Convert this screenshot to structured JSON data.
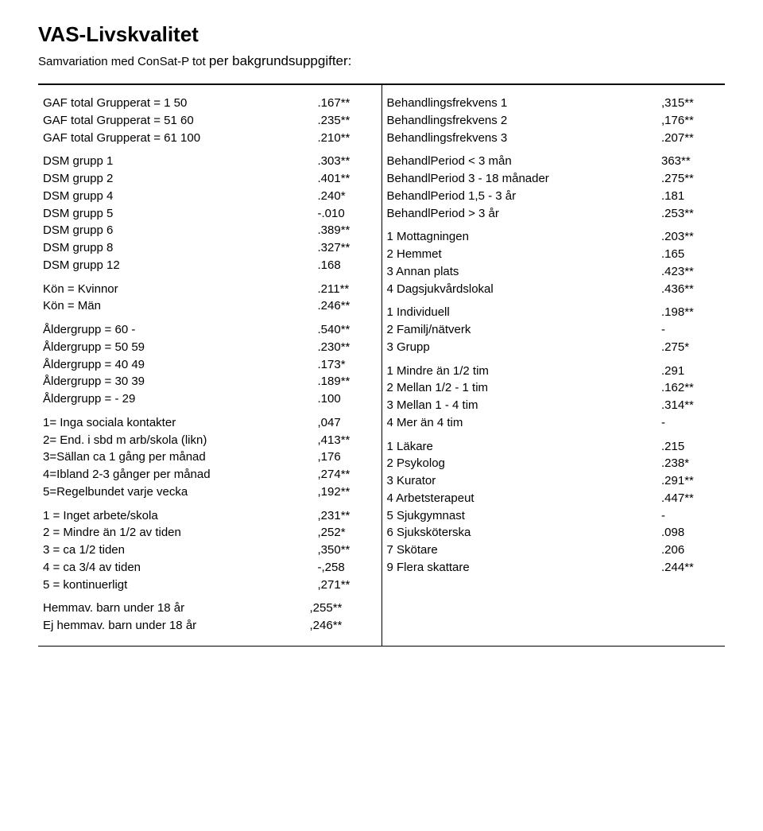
{
  "title": "VAS-Livskvalitet",
  "subtitle_small": "Samvariation med ConSat-P tot ",
  "subtitle_big": "per bakgrundsuppgifter:",
  "left": {
    "gaf": [
      {
        "label": "GAF total Grupperat = 1 50",
        "val": ".167**"
      },
      {
        "label": "GAF total Grupperat = 51 60",
        "val": ".235**"
      },
      {
        "label": "GAF total Grupperat = 61 100",
        "val": ".210**"
      }
    ],
    "dsm": [
      {
        "label": "DSM grupp 1",
        "val": ".303**"
      },
      {
        "label": "DSM grupp 2",
        "val": ".401**"
      },
      {
        "label": "DSM grupp 4",
        "val": ".240*"
      },
      {
        "label": "DSM grupp 5",
        "val": "-.010"
      },
      {
        "label": "DSM grupp 6",
        "val": ".389**"
      },
      {
        "label": "DSM grupp 8",
        "val": ".327**"
      },
      {
        "label": "DSM grupp 12",
        "val": ".168"
      }
    ],
    "kon": [
      {
        "label": "Kön = Kvinnor",
        "val": ".211**"
      },
      {
        "label": "Kön = Män",
        "val": ".246**"
      }
    ],
    "alder": [
      {
        "label": "Åldergrupp = 60 -",
        "val": ".540**"
      },
      {
        "label": "Åldergrupp = 50 59",
        "val": ".230**"
      },
      {
        "label": "Åldergrupp = 40 49",
        "val": ".173*"
      },
      {
        "label": "Åldergrupp = 30 39",
        "val": ".189**"
      },
      {
        "label": "Åldergrupp =  - 29",
        "val": ".100"
      }
    ],
    "soc": [
      {
        "label": "1= Inga sociala kontakter",
        "val": ",047"
      },
      {
        "label": "2= End. i sbd m arb/skola (likn)",
        "val": ",413**"
      },
      {
        "label": "3=Sällan ca 1 gång per månad",
        "val": ",176"
      },
      {
        "label": "4=Ibland 2-3 gånger per månad",
        "val": ",274**"
      },
      {
        "label": "5=Regelbundet varje vecka",
        "val": ",192**"
      }
    ],
    "arb": [
      {
        "label": "1 = Inget arbete/skola",
        "val": ",231**"
      },
      {
        "label": "2 = Mindre än 1/2 av tiden",
        "val": ",252*"
      },
      {
        "label": "3 = ca 1/2 tiden",
        "val": ",350**"
      },
      {
        "label": "4 = ca 3/4 av tiden",
        "val": "-,258"
      },
      {
        "label": "5 = kontinuerligt",
        "val": ",271**"
      }
    ],
    "hem": [
      {
        "label": "Hemmav. barn under 18 år",
        "val": ",255**"
      },
      {
        "label": "Ej hemmav. barn under 18 år",
        "val": ",246**"
      }
    ]
  },
  "right": {
    "freq": [
      {
        "label": "Behandlingsfrekvens 1",
        "val": ",315**"
      },
      {
        "label": "Behandlingsfrekvens 2",
        "val": ",176**"
      },
      {
        "label": "Behandlingsfrekvens 3",
        "val": ".207**"
      }
    ],
    "period": [
      {
        "label": "BehandlPeriod  < 3 mån",
        "val": "363**"
      },
      {
        "label": "BehandlPeriod 3 - 18 månader",
        "val": ".275**"
      },
      {
        "label": "BehandlPeriod 1,5 - 3 år",
        "val": ".181"
      },
      {
        "label": "BehandlPeriod  > 3 år",
        "val": ".253**"
      }
    ],
    "place": [
      {
        "label": "1 Mottagningen",
        "val": ".203**"
      },
      {
        "label": "2 Hemmet",
        "val": ".165"
      },
      {
        "label": "3 Annan plats",
        "val": ".423**"
      },
      {
        "label": "4 Dagsjukvårdslokal",
        "val": ".436**"
      }
    ],
    "form": [
      {
        "label": "1 Individuell",
        "val": ".198**"
      },
      {
        "label": "2 Familj/nätverk",
        "val": "-"
      },
      {
        "label": "3 Grupp",
        "val": ".275*"
      }
    ],
    "time": [
      {
        "label": "1 Mindre än 1/2 tim",
        "val": ".291"
      },
      {
        "label": "2 Mellan 1/2 - 1 tim",
        "val": ".162**"
      },
      {
        "label": "3 Mellan 1 - 4 tim",
        "val": ".314**"
      },
      {
        "label": "4 Mer än 4 tim",
        "val": "-"
      }
    ],
    "prof": [
      {
        "label": "1 Läkare",
        "val": ".215"
      },
      {
        "label": "2 Psykolog",
        "val": ".238*"
      },
      {
        "label": "3 Kurator",
        "val": ".291**"
      },
      {
        "label": "4 Arbetsterapeut",
        "val": ".447**"
      },
      {
        "label": "5 Sjukgymnast",
        "val": "-"
      },
      {
        "label": "6 Sjuksköterska",
        "val": ".098"
      },
      {
        "label": "7 Skötare",
        "val": ".206"
      },
      {
        "label": "9 Flera skattare",
        "val": ".244**"
      }
    ]
  }
}
